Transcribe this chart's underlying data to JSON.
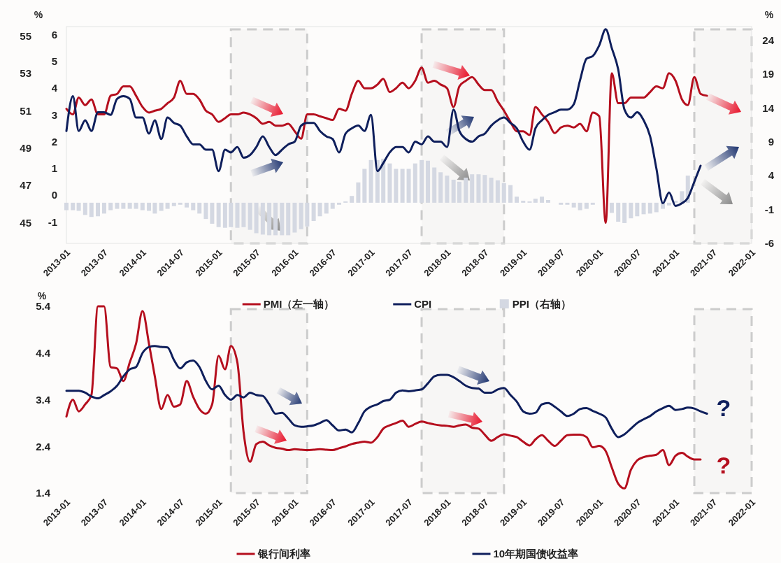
{
  "chart_data": [
    {
      "type": "line",
      "ylabel": "%",
      "y2label": "%",
      "legend": "bottom",
      "xlim": [
        "2013-01",
        "2022-01"
      ],
      "xticks": [
        "2013-01",
        "2013-07",
        "2014-01",
        "2014-07",
        "2015-01",
        "2015-07",
        "2016-01",
        "2016-07",
        "2017-01",
        "2017-07",
        "2018-01",
        "2018-07",
        "2019-01",
        "2019-07",
        "2020-01",
        "2020-07",
        "2021-01",
        "2021-07",
        "2022-01"
      ],
      "ylim": [
        43.9,
        55.5
      ],
      "yticks": [
        45,
        47,
        49,
        51,
        53,
        55
      ],
      "y3lim": [
        -1.8,
        6.3
      ],
      "y3ticks": [
        -1,
        0,
        1,
        2,
        3,
        4,
        5,
        6
      ],
      "y2lim": [
        -6,
        26
      ],
      "y2ticks": [
        -6,
        -1,
        4,
        9,
        14,
        19,
        24
      ],
      "bands": [
        {
          "axis": "x",
          "from": "2015-03",
          "to": "2016-03",
          "color": "#cccccc"
        },
        {
          "axis": "x",
          "from": "2017-09",
          "to": "2018-10",
          "color": "#cccccc"
        },
        {
          "axis": "x",
          "from": "2021-04",
          "to": "2022-01",
          "color": "#cccccc"
        }
      ],
      "x": [
        "2013-01",
        "2013-02",
        "2013-03",
        "2013-04",
        "2013-05",
        "2013-06",
        "2013-07",
        "2013-08",
        "2013-09",
        "2013-10",
        "2013-11",
        "2013-12",
        "2014-01",
        "2014-02",
        "2014-03",
        "2014-04",
        "2014-05",
        "2014-06",
        "2014-07",
        "2014-08",
        "2014-09",
        "2014-10",
        "2014-11",
        "2014-12",
        "2015-01",
        "2015-02",
        "2015-03",
        "2015-04",
        "2015-05",
        "2015-06",
        "2015-07",
        "2015-08",
        "2015-09",
        "2015-10",
        "2015-11",
        "2015-12",
        "2016-01",
        "2016-02",
        "2016-03",
        "2016-04",
        "2016-05",
        "2016-06",
        "2016-07",
        "2016-08",
        "2016-09",
        "2016-10",
        "2016-11",
        "2016-12",
        "2017-01",
        "2017-02",
        "2017-03",
        "2017-04",
        "2017-05",
        "2017-06",
        "2017-07",
        "2017-08",
        "2017-09",
        "2017-10",
        "2017-11",
        "2017-12",
        "2018-01",
        "2018-02",
        "2018-03",
        "2018-04",
        "2018-05",
        "2018-06",
        "2018-07",
        "2018-08",
        "2018-09",
        "2018-10",
        "2018-11",
        "2018-12",
        "2019-01",
        "2019-02",
        "2019-03",
        "2019-04",
        "2019-05",
        "2019-06",
        "2019-07",
        "2019-08",
        "2019-09",
        "2019-10",
        "2019-11",
        "2019-12",
        "2020-01",
        "2020-02",
        "2020-03",
        "2020-04",
        "2020-05",
        "2020-06",
        "2020-07",
        "2020-08",
        "2020-09",
        "2020-10",
        "2020-11",
        "2020-12",
        "2021-01",
        "2021-02",
        "2021-03",
        "2021-04",
        "2021-05",
        "2021-06"
      ],
      "series": [
        {
          "name": "PMI（左一轴）",
          "axis": "y",
          "color": "#b50f1e",
          "values": [
            51.1,
            50.8,
            51.7,
            51.3,
            51.6,
            50.8,
            50.8,
            51.8,
            51.9,
            52.3,
            52.3,
            51.8,
            51.2,
            50.9,
            51.0,
            51.1,
            51.4,
            51.7,
            52.6,
            51.9,
            51.9,
            51.6,
            51.0,
            50.8,
            50.4,
            50.6,
            50.8,
            50.8,
            50.9,
            50.8,
            50.6,
            50.3,
            50.4,
            50.2,
            50.2,
            50.3,
            49.9,
            49.5,
            50.8,
            50.8,
            50.7,
            50.6,
            50.5,
            51.1,
            51.0,
            51.9,
            52.6,
            52.2,
            52.2,
            52.4,
            52.7,
            52.0,
            52.2,
            52.5,
            52.2,
            52.6,
            53.3,
            52.5,
            52.6,
            52.4,
            52.2,
            51.2,
            52.3,
            52.6,
            52.8,
            52.4,
            52.1,
            52.1,
            51.5,
            51.0,
            50.4,
            49.9,
            49.9,
            49.7,
            51.2,
            50.8,
            50.4,
            49.8,
            50.1,
            50.2,
            50.1,
            50.3,
            49.9,
            50.9,
            50.7,
            45,
            53.0,
            51.4,
            51.4,
            51.7,
            51.7,
            51.7,
            52.0,
            52.3,
            52.2,
            53.0,
            52.6,
            51.6,
            51.3,
            52.8,
            51.9,
            51.8
          ]
        },
        {
          "name": "CPI",
          "axis": "y3",
          "color": "#0f1f5c",
          "values": [
            2.4,
            3.7,
            2.4,
            2.8,
            2.4,
            3.1,
            3.1,
            3.0,
            3.6,
            3.7,
            3.6,
            2.9,
            2.9,
            2.3,
            2.8,
            2.1,
            2.9,
            2.7,
            2.6,
            2.2,
            1.9,
            1.9,
            1.7,
            1.7,
            0.9,
            1.7,
            1.6,
            1.8,
            1.4,
            1.5,
            1.8,
            2.2,
            1.8,
            1.5,
            1.7,
            1.9,
            2.0,
            2.6,
            2.7,
            2.7,
            2.4,
            2.2,
            2.1,
            1.6,
            2.3,
            2.5,
            2.6,
            2.4,
            3.0,
            0.9,
            1.2,
            1.6,
            1.8,
            1.8,
            1.6,
            2.0,
            1.9,
            2.2,
            2.0,
            2.0,
            1.8,
            3.2,
            2.4,
            2.1,
            2.0,
            2.2,
            2.3,
            2.6,
            2.8,
            2.9,
            2.7,
            2.5,
            2.0,
            1.7,
            2.5,
            2.8,
            3.0,
            3.1,
            3.2,
            3.2,
            3.4,
            4.3,
            5.1,
            5.2,
            5.6,
            6.2,
            5.5,
            4.7,
            3.2,
            2.9,
            3.1,
            2.8,
            2.2,
            1.0,
            -0.3,
            0.1,
            -0.4,
            -0.3,
            -0.1,
            0.5,
            1.1,
            null
          ]
        },
        {
          "name": "PPI（右轴）",
          "type": "bar",
          "axis": "y2",
          "color": "#d4d8e2",
          "values": [
            -1.1,
            -1.1,
            -1.2,
            -1.8,
            -2.1,
            -2.0,
            -1.6,
            -1.1,
            -0.9,
            -0.9,
            -0.9,
            -0.9,
            -1.1,
            -1.2,
            -1.6,
            -1.2,
            -0.9,
            -0.5,
            -0.3,
            -0.7,
            -1.1,
            -1.6,
            -2.4,
            -3.1,
            -3.6,
            -3.7,
            -3.6,
            -3.7,
            -3.6,
            -4.0,
            -4.5,
            -4.7,
            -4.8,
            -4.8,
            -4.8,
            -4.8,
            -4.4,
            -3.9,
            -3.5,
            -2.7,
            -2.0,
            -1.6,
            -0.9,
            -0.3,
            0.2,
            1.0,
            3.0,
            5.0,
            6.3,
            6.3,
            6.5,
            5.8,
            5.0,
            5.0,
            5.0,
            5.8,
            6.3,
            6.2,
            5.2,
            4.5,
            4.0,
            3.4,
            3.1,
            3.7,
            4.2,
            4.2,
            4.1,
            3.7,
            3.3,
            2.9,
            2.6,
            0.9,
            0.3,
            0.2,
            0.6,
            0.9,
            0.4,
            null,
            -0.3,
            -0.3,
            -0.7,
            -1.1,
            -0.9,
            -0.3,
            null,
            null,
            -1.5,
            -2.8,
            -3.0,
            -2.3,
            -2.0,
            -1.7,
            -1.6,
            -1.4,
            -0.9,
            -0.4,
            0.3,
            1.7,
            4.0,
            null,
            null,
            null
          ]
        }
      ]
    },
    {
      "type": "line",
      "ylabel": "%",
      "legend": "bottom",
      "xlim": [
        "2013-01",
        "2022-01"
      ],
      "xticks": [
        "2013-01",
        "2013-07",
        "2014-01",
        "2014-07",
        "2015-01",
        "2015-07",
        "2016-01",
        "2016-07",
        "2017-01",
        "2017-07",
        "2018-01",
        "2018-07",
        "2019-01",
        "2019-07",
        "2020-01",
        "2020-07",
        "2021-01",
        "2021-07",
        "2022-01"
      ],
      "ylim": [
        1.4,
        5.4
      ],
      "yticks": [
        1.4,
        2.4,
        3.4,
        4.4,
        5.4
      ],
      "bands": [
        {
          "axis": "x",
          "from": "2015-03",
          "to": "2016-03",
          "color": "#cccccc"
        },
        {
          "axis": "x",
          "from": "2017-09",
          "to": "2018-10",
          "color": "#cccccc"
        },
        {
          "axis": "x",
          "from": "2021-04",
          "to": "2022-01",
          "color": "#cccccc"
        }
      ],
      "annotations": [
        "?",
        "?"
      ],
      "x": [
        "2013-01",
        "2013-02",
        "2013-03",
        "2013-04",
        "2013-05",
        "2013-06",
        "2013-07",
        "2013-08",
        "2013-09",
        "2013-10",
        "2013-11",
        "2013-12",
        "2014-01",
        "2014-02",
        "2014-03",
        "2014-04",
        "2014-05",
        "2014-06",
        "2014-07",
        "2014-08",
        "2014-09",
        "2014-10",
        "2014-11",
        "2014-12",
        "2015-01",
        "2015-02",
        "2015-03",
        "2015-04",
        "2015-05",
        "2015-06",
        "2015-07",
        "2015-08",
        "2015-09",
        "2015-10",
        "2015-11",
        "2015-12",
        "2016-01",
        "2016-02",
        "2016-03",
        "2016-04",
        "2016-05",
        "2016-06",
        "2016-07",
        "2016-08",
        "2016-09",
        "2016-10",
        "2016-11",
        "2016-12",
        "2017-01",
        "2017-02",
        "2017-03",
        "2017-04",
        "2017-05",
        "2017-06",
        "2017-07",
        "2017-08",
        "2017-09",
        "2017-10",
        "2017-11",
        "2017-12",
        "2018-01",
        "2018-02",
        "2018-03",
        "2018-04",
        "2018-05",
        "2018-06",
        "2018-07",
        "2018-08",
        "2018-09",
        "2018-10",
        "2018-11",
        "2018-12",
        "2019-01",
        "2019-02",
        "2019-03",
        "2019-04",
        "2019-05",
        "2019-06",
        "2019-07",
        "2019-08",
        "2019-09",
        "2019-10",
        "2019-11",
        "2019-12",
        "2020-01",
        "2020-02",
        "2020-03",
        "2020-04",
        "2020-05",
        "2020-06",
        "2020-07",
        "2020-08",
        "2020-09",
        "2020-10",
        "2020-11",
        "2020-12",
        "2021-01",
        "2021-02",
        "2021-03",
        "2021-04",
        "2021-05",
        "2021-06"
      ],
      "series": [
        {
          "name": "银行间利率",
          "color": "#b50f1e",
          "values": [
            3.04,
            3.4,
            3.15,
            3.3,
            3.5,
            5.4,
            5.4,
            4.1,
            4.07,
            3.8,
            4.2,
            4.6,
            5.3,
            4.6,
            3.9,
            3.2,
            3.5,
            3.25,
            3.3,
            3.8,
            3.46,
            3.2,
            3.1,
            3.3,
            4.34,
            4.05,
            4.55,
            4.2,
            2.7,
            2.07,
            2.45,
            2.5,
            2.42,
            2.37,
            2.35,
            2.32,
            2.34,
            2.33,
            2.32,
            2.33,
            2.34,
            2.33,
            2.32,
            2.36,
            2.4,
            2.45,
            2.48,
            2.5,
            2.48,
            2.6,
            2.78,
            2.85,
            2.9,
            2.95,
            2.82,
            2.88,
            2.93,
            2.9,
            2.87,
            2.85,
            2.84,
            2.82,
            2.85,
            2.87,
            2.8,
            2.78,
            2.65,
            2.52,
            2.6,
            2.66,
            2.63,
            2.6,
            2.5,
            2.42,
            2.55,
            2.64,
            2.52,
            2.41,
            2.52,
            2.64,
            2.65,
            2.65,
            2.6,
            2.38,
            2.41,
            2.3,
            1.95,
            1.6,
            1.5,
            1.9,
            2.1,
            2.17,
            2.2,
            2.22,
            2.32,
            2.0,
            2.2,
            2.26,
            2.18,
            2.12,
            2.12,
            null
          ]
        },
        {
          "name": "10年期国债收益率",
          "color": "#0f1f5c",
          "values": [
            3.59,
            3.59,
            3.59,
            3.55,
            3.47,
            3.43,
            3.5,
            3.58,
            3.7,
            3.9,
            4.05,
            4.1,
            4.4,
            4.53,
            4.55,
            4.53,
            4.52,
            4.25,
            4.07,
            4.2,
            4.24,
            4.1,
            3.8,
            3.62,
            3.7,
            3.5,
            3.4,
            3.5,
            3.45,
            3.55,
            3.5,
            3.48,
            3.3,
            3.1,
            3.12,
            3.0,
            2.85,
            2.82,
            2.83,
            2.85,
            2.9,
            2.96,
            2.85,
            2.74,
            2.76,
            2.7,
            2.9,
            3.15,
            3.25,
            3.3,
            3.37,
            3.4,
            3.55,
            3.6,
            3.58,
            3.6,
            3.62,
            3.75,
            3.9,
            3.93,
            3.93,
            3.88,
            3.8,
            3.7,
            3.65,
            3.64,
            3.55,
            3.55,
            3.62,
            3.65,
            3.5,
            3.36,
            3.15,
            3.1,
            3.12,
            3.3,
            3.33,
            3.25,
            3.15,
            3.05,
            3.1,
            3.2,
            3.22,
            3.16,
            3.1,
            3.02,
            2.78,
            2.6,
            2.66,
            2.78,
            2.9,
            2.98,
            3.05,
            3.15,
            3.22,
            3.27,
            3.18,
            3.2,
            3.23,
            3.21,
            3.15,
            3.1
          ]
        }
      ]
    }
  ]
}
